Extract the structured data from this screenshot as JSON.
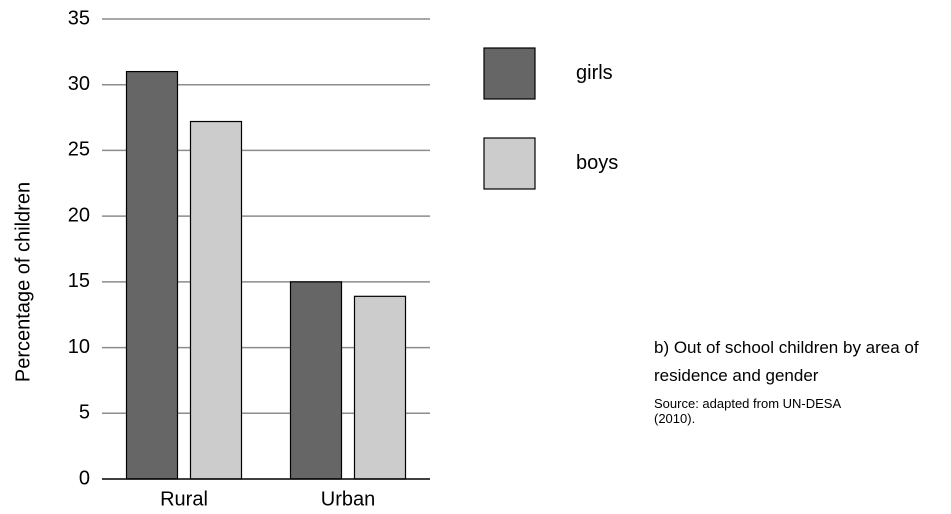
{
  "chart_data": {
    "type": "bar",
    "categories": [
      "Rural",
      "Urban"
    ],
    "series": [
      {
        "name": "girls",
        "values": [
          31,
          15
        ],
        "color": "#666666"
      },
      {
        "name": "boys",
        "values": [
          27.2,
          13.9
        ],
        "color": "#cccccc"
      }
    ],
    "ylabel": "Percentage of children",
    "xlabel": "",
    "ylim": [
      0,
      35
    ],
    "yticks": [
      0,
      5,
      10,
      15,
      20,
      25,
      30,
      35
    ],
    "grid": true,
    "legend": "right"
  },
  "caption": {
    "text": "b)  Out of school children by area of residence and gender",
    "source": "Source: adapted from UN-DESA (2010)."
  }
}
